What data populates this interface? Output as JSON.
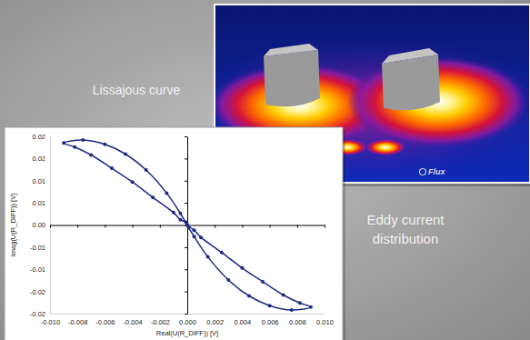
{
  "chart_data": {
    "type": "line",
    "x_label": "Real(U(R_DIFF)) [V]",
    "y_label": "Imag(U(R_DIFF)) [V]",
    "x": [
      0,
      0.0005,
      0.001,
      0.0025,
      0.004,
      0.0055,
      0.007,
      0.0082,
      0.009,
      0.0076,
      0.006,
      0.0045,
      0.003,
      0.0015,
      0.0005,
      0.0001,
      -0.0001,
      -0.0005,
      -0.001,
      -0.0025,
      -0.004,
      -0.0055,
      -0.007,
      -0.0082,
      -0.009,
      -0.0076,
      -0.006,
      -0.0045,
      -0.003,
      -0.0015,
      -0.0005,
      0
    ],
    "series": [
      {
        "name": "U(R_DIFF)",
        "color": "#1c2a86",
        "marker": "circle",
        "line_style": "solid",
        "values": [
          0,
          -0.0012,
          -0.0028,
          -0.0062,
          -0.0097,
          -0.0128,
          -0.0158,
          -0.0176,
          -0.0185,
          -0.0192,
          -0.0182,
          -0.016,
          -0.0124,
          -0.0072,
          -0.0026,
          -0.0006,
          0.0006,
          0.0012,
          0.0028,
          0.0062,
          0.0097,
          0.0128,
          0.0158,
          0.0176,
          0.0185,
          0.0192,
          0.0182,
          0.016,
          0.0124,
          0.0072,
          0.0026,
          0
        ]
      }
    ],
    "xlim": [
      -0.01,
      0.01
    ],
    "ylim": [
      -0.02,
      0.02
    ],
    "xticks": [
      {
        "value": -0.01,
        "label": "-0.010"
      },
      {
        "value": -0.008,
        "label": "-0.008"
      },
      {
        "value": -0.006,
        "label": "-0.006"
      },
      {
        "value": -0.004,
        "label": "-0.004"
      },
      {
        "value": -0.002,
        "label": "-0.002"
      },
      {
        "value": 0,
        "label": "0.000"
      },
      {
        "value": 0.002,
        "label": "0.002"
      },
      {
        "value": 0.004,
        "label": "0.004"
      },
      {
        "value": 0.006,
        "label": "0.006"
      },
      {
        "value": 0.008,
        "label": "0.008"
      },
      {
        "value": 0.01,
        "label": "0.010"
      }
    ],
    "yticks": [
      -0.02,
      {
        "value": -0.015,
        "label": "-0.02"
      },
      -0.01,
      {
        "value": -0.005,
        "label": "-0.01"
      },
      {
        "value": 0,
        "label": "0.00"
      },
      {
        "value": 0.005,
        "label": "0.01"
      },
      0.01,
      {
        "value": 0.015,
        "label": "0.02"
      },
      0.02
    ],
    "grid": false
  },
  "captions": {
    "chart": "Lissajous curve",
    "image": [
      "Eddy current",
      "distribution"
    ],
    "logo": "Flux"
  }
}
